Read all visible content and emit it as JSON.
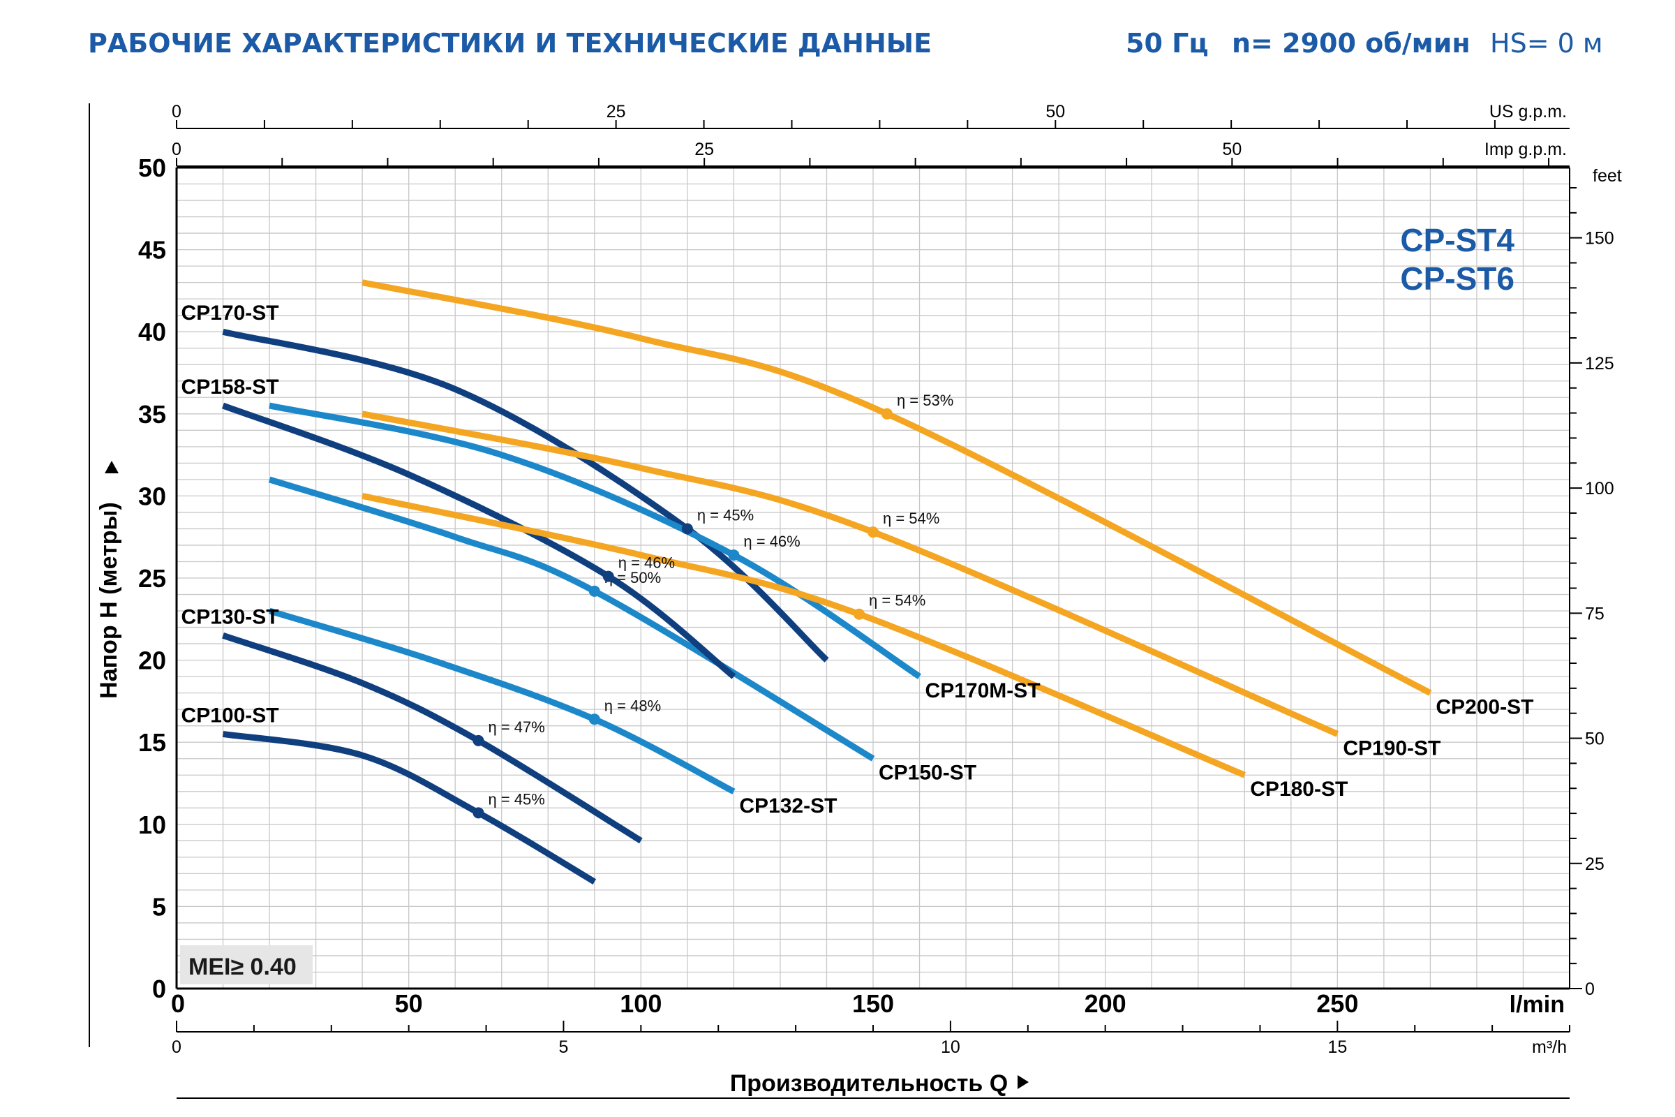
{
  "header": {
    "title": "РАБОЧИЕ ХАРАКТЕРИСТИКИ И ТЕХНИЧЕСКИЕ ДАННЫЕ",
    "frequency": "50 Гц",
    "speed": "n= 2900 об/мин",
    "hs": "HS= 0 м"
  },
  "colors": {
    "title": "#1b5aa6",
    "dark_blue": "#0f3f7e",
    "light_blue": "#1d88c9",
    "orange": "#f4a521",
    "grid": "#c8c8c8",
    "axis": "#000000",
    "badge_bg": "#e6e6e6"
  },
  "chart_data": {
    "type": "line",
    "model_label": [
      "CP-ST4",
      "CP-ST6"
    ],
    "badge": "MEI≥ 0.40",
    "xlabel": "Производительность Q",
    "ylabel": "Напор H (метры)",
    "xlim": [
      0,
      300
    ],
    "ylim": [
      0,
      50
    ],
    "grid": true,
    "x_unit": "l/min",
    "x_ticks": [
      0,
      50,
      100,
      150,
      200,
      250
    ],
    "y_ticks": [
      0,
      5,
      10,
      15,
      20,
      25,
      30,
      35,
      40,
      45,
      50
    ],
    "right_axis": {
      "unit": "feet",
      "ticks": [
        0,
        25,
        50,
        75,
        100,
        125,
        150
      ]
    },
    "top_axis_us": {
      "unit": "US g.p.m.",
      "ticks": [
        0,
        25,
        50
      ]
    },
    "top_axis_imp": {
      "unit": "Imp g.p.m.",
      "ticks": [
        0,
        25,
        50
      ]
    },
    "bottom_axis_m3h": {
      "unit": "m³/h",
      "ticks": [
        0,
        5,
        10,
        15
      ]
    },
    "series": [
      {
        "name": "CP100-ST",
        "color": "dark_blue",
        "points": [
          [
            10,
            15.5
          ],
          [
            40,
            14.2
          ],
          [
            65,
            10.7
          ],
          [
            90,
            6.5
          ]
        ],
        "label_anchor": [
          10,
          15.5
        ],
        "label_side": "start",
        "eff": {
          "text": "η = 45%",
          "x": 65,
          "y": 10.7
        }
      },
      {
        "name": "CP130-ST",
        "color": "dark_blue",
        "points": [
          [
            10,
            21.5
          ],
          [
            40,
            18.6
          ],
          [
            65,
            15.1
          ],
          [
            100,
            9
          ]
        ],
        "label_anchor": [
          10,
          21.5
        ],
        "label_side": "start",
        "eff": {
          "text": "η = 47%",
          "x": 65,
          "y": 15.1
        }
      },
      {
        "name": "CP132-ST",
        "color": "light_blue",
        "points": [
          [
            20,
            23
          ],
          [
            55,
            20
          ],
          [
            90,
            16.4
          ],
          [
            120,
            12
          ]
        ],
        "label_anchor": [
          120,
          12
        ],
        "label_side": "end",
        "eff": {
          "text": "η = 48%",
          "x": 90,
          "y": 16.4
        }
      },
      {
        "name": "CP150-ST",
        "color": "light_blue",
        "points": [
          [
            20,
            31
          ],
          [
            60,
            27.5
          ],
          [
            90,
            24.2
          ],
          [
            150,
            14
          ]
        ],
        "label_anchor": [
          150,
          14
        ],
        "label_side": "end",
        "eff": {
          "text": "η = 50%",
          "x": 90,
          "y": 24.2
        }
      },
      {
        "name": "CP158-ST",
        "color": "dark_blue",
        "points": [
          [
            10,
            35.5
          ],
          [
            50,
            31.3
          ],
          [
            93,
            25.1
          ],
          [
            120,
            19
          ]
        ],
        "label_anchor": [
          10,
          35.5
        ],
        "label_side": "start",
        "eff": {
          "text": "η = 46%",
          "x": 93,
          "y": 25.1
        }
      },
      {
        "name": "CP170-ST",
        "color": "dark_blue",
        "points": [
          [
            10,
            40
          ],
          [
            60,
            36.5
          ],
          [
            110,
            28
          ],
          [
            140,
            20
          ]
        ],
        "label_anchor": [
          10,
          40
        ],
        "label_side": "start",
        "eff": {
          "text": "η = 45%",
          "x": 110,
          "y": 28
        }
      },
      {
        "name": "CP170M-ST",
        "color": "light_blue",
        "points": [
          [
            20,
            35.5
          ],
          [
            70,
            32.5
          ],
          [
            120,
            26.4
          ],
          [
            160,
            19
          ]
        ],
        "label_anchor": [
          160,
          19
        ],
        "label_side": "end",
        "eff": {
          "text": "η = 46%",
          "x": 120,
          "y": 26.4
        }
      },
      {
        "name": "CP180-ST",
        "color": "orange",
        "points": [
          [
            40,
            30
          ],
          [
            100,
            26.4
          ],
          [
            147,
            22.8
          ],
          [
            230,
            13
          ]
        ],
        "label_anchor": [
          230,
          13
        ],
        "label_side": "end",
        "eff": {
          "text": "η = 54%",
          "x": 147,
          "y": 22.8
        }
      },
      {
        "name": "CP190-ST",
        "color": "orange",
        "points": [
          [
            40,
            35
          ],
          [
            100,
            31.7
          ],
          [
            150,
            27.8
          ],
          [
            250,
            15.5
          ]
        ],
        "label_anchor": [
          250,
          15.5
        ],
        "label_side": "end",
        "eff": {
          "text": "η = 54%",
          "x": 150,
          "y": 27.8
        }
      },
      {
        "name": "CP200-ST",
        "color": "orange",
        "points": [
          [
            40,
            43
          ],
          [
            100,
            39.6
          ],
          [
            153,
            35
          ],
          [
            270,
            18
          ]
        ],
        "label_anchor": [
          270,
          18
        ],
        "label_side": "end",
        "eff": {
          "text": "η = 53%",
          "x": 153,
          "y": 35
        }
      }
    ]
  }
}
